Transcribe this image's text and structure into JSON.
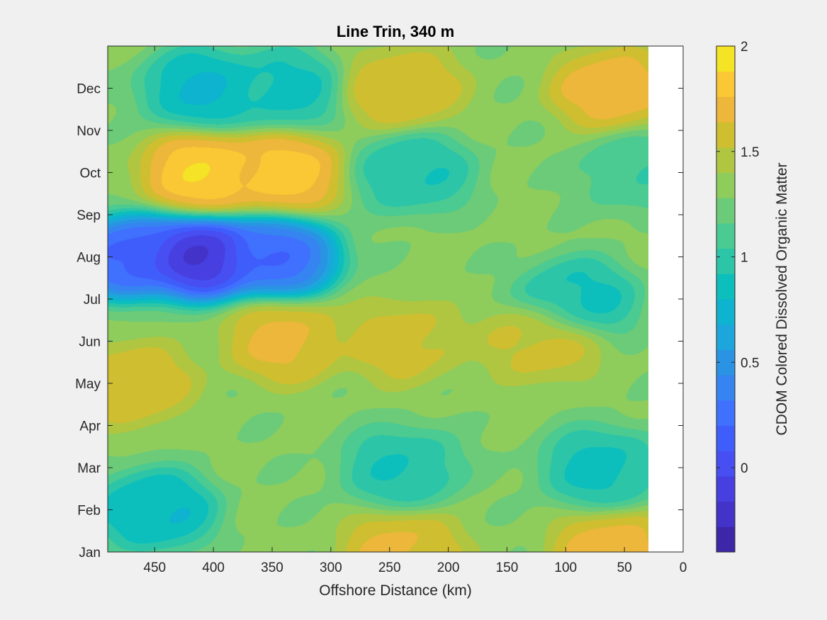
{
  "chart_data": {
    "type": "heatmap",
    "title": "Line Trin, 340 m",
    "xlabel": "Offshore Distance (km)",
    "ylabel": "",
    "xlim": [
      490,
      0
    ],
    "x_direction": "reversed",
    "x_ticks": [
      450,
      400,
      350,
      300,
      250,
      200,
      150,
      100,
      50,
      0
    ],
    "y_ticks": [
      "Jan",
      "Feb",
      "Mar",
      "Apr",
      "May",
      "Jun",
      "Jul",
      "Aug",
      "Sep",
      "Oct",
      "Nov",
      "Dec"
    ],
    "colorbar": {
      "label": "CDOM Colored Dissolved Organic Matter",
      "range": [
        -0.4,
        2.0
      ],
      "ticks": [
        0,
        0.5,
        1,
        1.5,
        2
      ],
      "levels": 20,
      "colormap": "parula",
      "colors": [
        "#3e26a8",
        "#4433c9",
        "#473fe0",
        "#474ff2",
        "#3f5dfb",
        "#3f70fe",
        "#3584f1",
        "#2a93e3",
        "#1ca6db",
        "#0db3cf",
        "#0cbfbc",
        "#2cc5a8",
        "#4bca92",
        "#6ccb78",
        "#8ecc5c",
        "#b0c640",
        "#cfbe30",
        "#ecb73b",
        "#f9c834",
        "#f5e325"
      ]
    },
    "data_extent_x": [
      490,
      30
    ],
    "grid": false,
    "legend": "none",
    "field_description": "Monthly CDOM along Line Trin at 340 m; low values (~-0.3) near Jul–Sep at 330–490 km, high values (~1.9) near Oct at 340–420 km and near shore in Dec–Jan.",
    "field_anchors": [
      {
        "x": 470,
        "month": "Aug",
        "value": 0.05
      },
      {
        "x": 410,
        "month": "Aug",
        "value": -0.3
      },
      {
        "x": 345,
        "month": "Aug",
        "value": 0.15
      },
      {
        "x": 410,
        "month": "Oct",
        "value": 1.9
      },
      {
        "x": 340,
        "month": "Oct",
        "value": 1.85
      },
      {
        "x": 410,
        "month": "Dec",
        "value": 0.75
      },
      {
        "x": 340,
        "month": "Dec",
        "value": 0.85
      },
      {
        "x": 470,
        "month": "May",
        "value": 1.65
      },
      {
        "x": 340,
        "month": "Jun",
        "value": 1.7
      },
      {
        "x": 240,
        "month": "Jun",
        "value": 1.6
      },
      {
        "x": 120,
        "month": "Jun",
        "value": 1.6
      },
      {
        "x": 450,
        "month": "Feb",
        "value": 0.75
      },
      {
        "x": 240,
        "month": "Mar",
        "value": 0.9
      },
      {
        "x": 90,
        "month": "Jul",
        "value": 0.85
      },
      {
        "x": 70,
        "month": "Mar",
        "value": 0.85
      },
      {
        "x": 230,
        "month": "Oct",
        "value": 0.9
      },
      {
        "x": 60,
        "month": "Dec",
        "value": 1.75
      },
      {
        "x": 240,
        "month": "Dec",
        "value": 1.65
      },
      {
        "x": 60,
        "month": "Jan",
        "value": 1.75
      },
      {
        "x": 240,
        "month": "Jan",
        "value": 1.7
      },
      {
        "x": 40,
        "month": "Oct",
        "value": 1.05
      }
    ],
    "background_value": 1.3
  }
}
